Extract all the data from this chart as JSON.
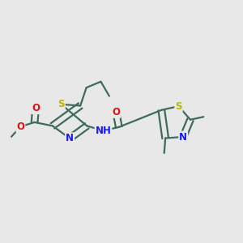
{
  "bg_color": "#e8e8e8",
  "bond_color": "#3d6b5e",
  "S_color": "#b8b800",
  "N_color": "#1a1aee",
  "O_color": "#dd1111",
  "lw": 1.6,
  "doff": 0.013,
  "fs": 8.5,
  "fig_bg": "#e8e8e8",
  "xlim": [
    0,
    1
  ],
  "ylim": [
    0,
    1
  ]
}
